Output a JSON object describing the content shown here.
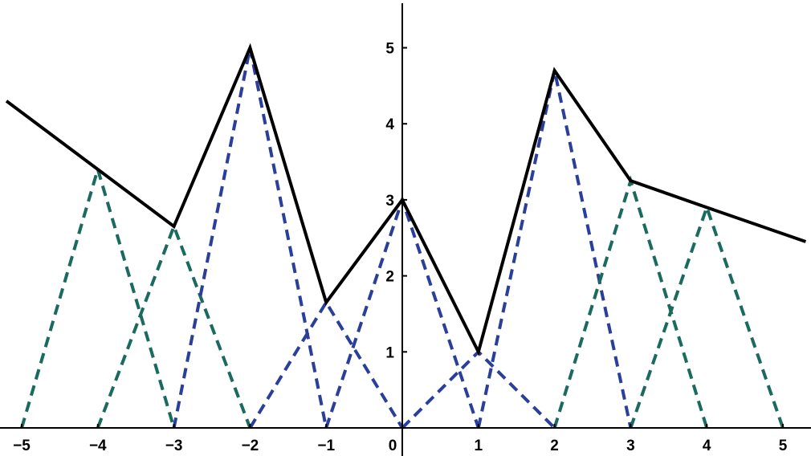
{
  "chart_data": {
    "type": "line",
    "title": "",
    "xlabel": "",
    "ylabel": "",
    "xlim": [
      -5.2,
      5.3
    ],
    "ylim": [
      0,
      5.6
    ],
    "x_ticks": [
      -5,
      -4,
      -3,
      -2,
      -1,
      0,
      1,
      2,
      3,
      4,
      5
    ],
    "x_tick_labels": [
      "−5",
      "−4",
      "−3",
      "−2",
      "−1",
      "0",
      "1",
      "2",
      "3",
      "4",
      "5"
    ],
    "y_ticks": [
      1,
      2,
      3,
      4,
      5
    ],
    "y_tick_labels": [
      "1",
      "2",
      "3",
      "4",
      "5"
    ],
    "grid": false,
    "legend": "none",
    "colors": {
      "sum_line": "#000000",
      "green_dashed": "#1a6a5e",
      "blue_dashed": "#2a3f9a",
      "axes": "#000000"
    },
    "series": [
      {
        "style": "solid",
        "color_key": "sum_line",
        "points": [
          [
            -5.2,
            4.3
          ],
          [
            -4,
            3.4
          ],
          [
            -3,
            2.65
          ],
          [
            -2,
            5.0
          ],
          [
            -1,
            1.65
          ],
          [
            0,
            3.0
          ],
          [
            1,
            1.0
          ],
          [
            2,
            4.7
          ],
          [
            3,
            3.25
          ],
          [
            4,
            2.9
          ],
          [
            5.3,
            2.45
          ]
        ]
      },
      {
        "style": "dashed",
        "color_key": "green_dashed",
        "points": [
          [
            -5,
            0
          ],
          [
            -4,
            3.4
          ],
          [
            -3,
            0
          ]
        ]
      },
      {
        "style": "dashed",
        "color_key": "green_dashed",
        "points": [
          [
            -4,
            0
          ],
          [
            -3,
            2.65
          ],
          [
            -2,
            0
          ]
        ]
      },
      {
        "style": "dashed",
        "color_key": "blue_dashed",
        "points": [
          [
            -3,
            0
          ],
          [
            -2,
            5.0
          ],
          [
            -1,
            0
          ]
        ]
      },
      {
        "style": "dashed",
        "color_key": "blue_dashed",
        "points": [
          [
            -2,
            0
          ],
          [
            -1,
            1.65
          ],
          [
            0,
            0
          ]
        ]
      },
      {
        "style": "dashed",
        "color_key": "blue_dashed",
        "points": [
          [
            -1,
            0
          ],
          [
            0,
            3.0
          ],
          [
            1,
            0
          ]
        ]
      },
      {
        "style": "dashed",
        "color_key": "blue_dashed",
        "points": [
          [
            0,
            0
          ],
          [
            1,
            1.0
          ],
          [
            2,
            0
          ]
        ]
      },
      {
        "style": "dashed",
        "color_key": "blue_dashed",
        "points": [
          [
            1,
            0
          ],
          [
            2,
            4.7
          ],
          [
            3,
            0
          ]
        ]
      },
      {
        "style": "dashed",
        "color_key": "green_dashed",
        "points": [
          [
            2,
            0
          ],
          [
            3,
            3.25
          ],
          [
            4,
            0
          ]
        ]
      },
      {
        "style": "dashed",
        "color_key": "green_dashed",
        "points": [
          [
            3,
            0
          ],
          [
            4,
            2.9
          ],
          [
            5,
            0
          ]
        ]
      }
    ]
  }
}
